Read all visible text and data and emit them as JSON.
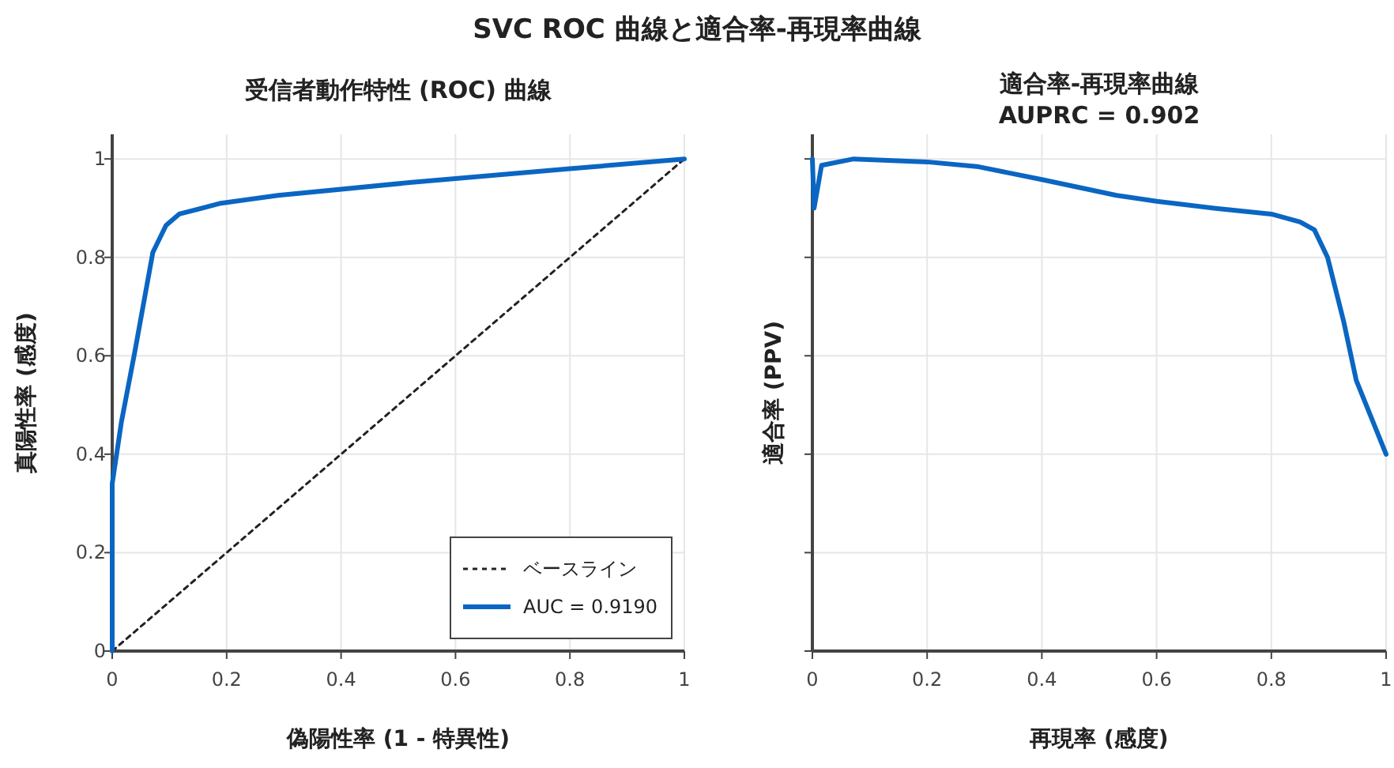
{
  "chart_data": [
    {
      "type": "line",
      "title": "受信者動作特性 (ROC) 曲線",
      "xlabel": "偽陽性率 (1 - 特異性)",
      "ylabel": "真陽性率 (感度)",
      "annotations": [
        "SVC ROC 曲線と適合率-再現率曲線"
      ],
      "xlim": [
        0,
        1
      ],
      "ylim": [
        0,
        1.05
      ],
      "xticks": [
        0,
        0.2,
        0.4,
        0.6,
        0.8,
        1
      ],
      "yticks": [
        0,
        0.2,
        0.4,
        0.6,
        0.8,
        1
      ],
      "grid": true,
      "legend": "bottom right",
      "series": [
        {
          "name": "ベースライン",
          "color": "#222222",
          "line_style": "dotted",
          "x": [
            0,
            1
          ],
          "values": [
            0,
            1
          ]
        },
        {
          "name": "AUC = 0.9190",
          "color": "#0a66c2",
          "line_style": "solid",
          "x": [
            0,
            0,
            0.016,
            0.039,
            0.071,
            0.094,
            0.117,
            0.19,
            0.29,
            0.52,
            0.8,
            1
          ],
          "values": [
            0,
            0.34,
            0.465,
            0.605,
            0.81,
            0.865,
            0.888,
            0.91,
            0.926,
            0.952,
            0.98,
            1
          ]
        }
      ]
    },
    {
      "type": "line",
      "title": "適合率-再現率曲線",
      "subtitle": "AUPRC = 0.902",
      "xlabel": "再現率 (感度)",
      "ylabel": "適合率 (PPV)",
      "xlim": [
        0,
        1
      ],
      "ylim": [
        0,
        1.05
      ],
      "xticks": [
        0,
        0.2,
        0.4,
        0.6,
        0.8,
        1
      ],
      "yticks": [
        0,
        0.2,
        0.4,
        0.6,
        0.8,
        1
      ],
      "grid": true,
      "tick_labels": "x",
      "series": [
        {
          "color": "#0a66c2",
          "line_style": "solid",
          "x": [
            0,
            0.003,
            0.016,
            0.072,
            0.2,
            0.29,
            0.4,
            0.53,
            0.6,
            0.7,
            0.8,
            0.85,
            0.875,
            0.898,
            0.926,
            0.948,
            1
          ],
          "values": [
            1.0,
            0.9,
            0.987,
            1.0,
            0.994,
            0.984,
            0.958,
            0.926,
            0.914,
            0.9,
            0.888,
            0.872,
            0.856,
            0.8,
            0.67,
            0.55,
            0.4
          ]
        }
      ]
    }
  ]
}
